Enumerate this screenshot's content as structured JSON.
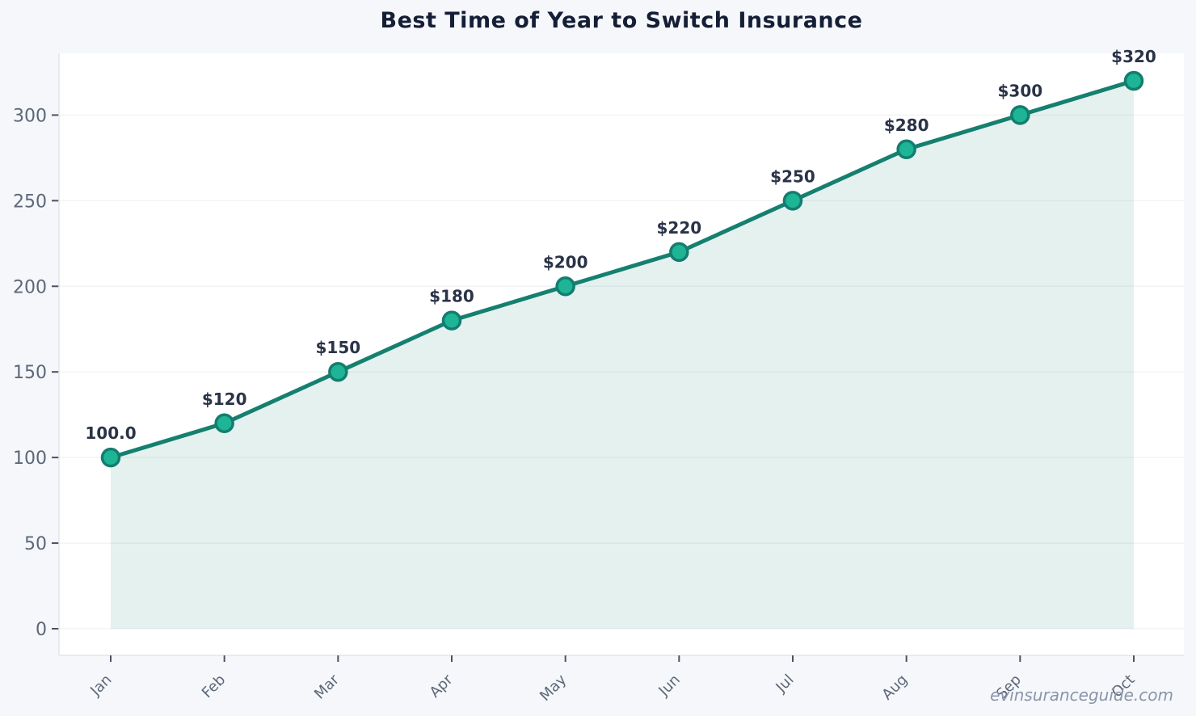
{
  "page": {
    "background": "#f5f7fa",
    "watermark": "evinsuranceguide.com"
  },
  "chart_data": {
    "type": "area",
    "title": "Best Time of Year to Switch Insurance",
    "categories": [
      "Jan",
      "Feb",
      "Mar",
      "Apr",
      "May",
      "Jun",
      "Jul",
      "Aug",
      "Sep",
      "Oct"
    ],
    "values": [
      100,
      120,
      150,
      180,
      200,
      220,
      250,
      280,
      300,
      320
    ],
    "point_labels": [
      "100.0",
      "$120",
      "$150",
      "$180",
      "$200",
      "$220",
      "$250",
      "$280",
      "$300",
      "$320"
    ],
    "xlabel": "",
    "ylabel": "",
    "ylim": [
      0,
      336
    ],
    "yticks": [
      0,
      50,
      100,
      150,
      200,
      250,
      300
    ],
    "grid": "horizontal",
    "legend": "none",
    "colors": {
      "line": "#15806f",
      "marker_fill": "#1db596",
      "marker_stroke": "#147d6f",
      "area_fill": "rgba(21, 128, 111, 0.11)",
      "plot_background": "#ffffff",
      "page_background": "#f5f7fa",
      "value_label": "#2a3347",
      "tick_label": "#5c6878",
      "title": "#141e36",
      "watermark": "#8b95aa"
    }
  }
}
